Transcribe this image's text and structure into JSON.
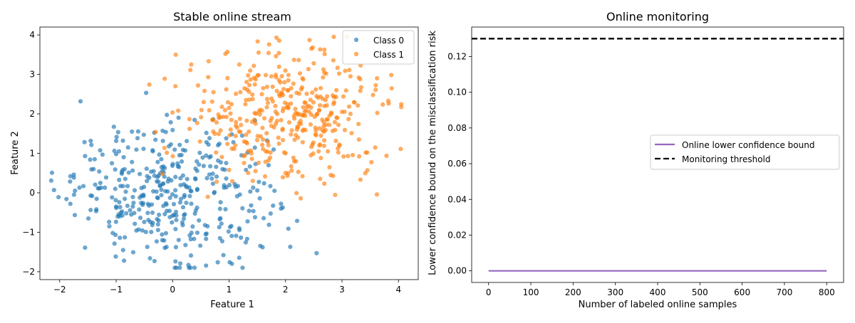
{
  "chart_data": [
    {
      "type": "scatter",
      "title": "Stable online stream",
      "xlabel": "Feature 1",
      "ylabel": "Feature 2",
      "xlim": [
        -2.35,
        4.35
      ],
      "ylim": [
        -2.2,
        4.2
      ],
      "xticks": [
        -2,
        -1,
        0,
        1,
        2,
        3,
        4
      ],
      "yticks": [
        -2,
        -1,
        0,
        1,
        2,
        3,
        4
      ],
      "grid": false,
      "legend_position": "top-right",
      "series": [
        {
          "name": "Class 0",
          "color": "#1f77b4",
          "distribution": {
            "n": 400,
            "mean": [
              0,
              0
            ],
            "sd": [
              0.85,
              0.85
            ]
          },
          "points": [
            [
              -2.1,
              0.07
            ],
            [
              -2.02,
              -0.11
            ],
            [
              -1.88,
              -0.16
            ],
            [
              -1.81,
              0.42
            ],
            [
              -1.75,
              0.46
            ],
            [
              -1.65,
              0.13
            ],
            [
              -1.58,
              0.17
            ],
            [
              -1.55,
              0.93
            ],
            [
              -1.55,
              -1.39
            ],
            [
              -1.46,
              0.84
            ],
            [
              -1.38,
              0.85
            ],
            [
              -1.35,
              -0.42
            ],
            [
              -1.3,
              0.54
            ],
            [
              -1.2,
              0.13
            ],
            [
              -1.12,
              -0.85
            ],
            [
              -1.0,
              0.98
            ],
            [
              -0.95,
              1.05
            ],
            [
              -0.88,
              1.32
            ],
            [
              -0.86,
              -1.72
            ],
            [
              -0.72,
              1.55
            ],
            [
              -0.8,
              -0.33
            ],
            [
              -0.51,
              1.47
            ],
            [
              -0.12,
              1.54
            ],
            [
              0.0,
              1.59
            ],
            [
              0.25,
              1.31
            ],
            [
              0.28,
              -1.83
            ],
            [
              0.38,
              -1.17
            ],
            [
              0.72,
              1.86
            ],
            [
              0.9,
              -1.58
            ],
            [
              1.05,
              -1.8
            ],
            [
              1.3,
              0.58
            ],
            [
              1.39,
              -0.32
            ],
            [
              1.5,
              0.06
            ],
            [
              1.62,
              0.24
            ],
            [
              1.92,
              -0.28
            ],
            [
              1.92,
              -0.4
            ],
            [
              2.05,
              -0.91
            ],
            [
              1.32,
              -1.17
            ],
            [
              1.18,
              -0.9
            ],
            [
              -0.4,
              -1.66
            ],
            [
              -0.32,
              -1.73
            ],
            [
              -0.6,
              -0.93
            ],
            [
              0.55,
              0.68
            ],
            [
              0.12,
              0.95
            ],
            [
              -0.25,
              0.28
            ],
            [
              0.41,
              -0.45
            ],
            [
              -1.0,
              -0.35
            ],
            [
              0.85,
              -0.24
            ],
            [
              1.1,
              0.22
            ],
            [
              -0.72,
              0.78
            ],
            [
              0.6,
              1.28
            ],
            [
              -1.28,
              0.25
            ],
            [
              1.22,
              0.95
            ],
            [
              -0.15,
              -1.21
            ],
            [
              0.32,
              0.05
            ],
            [
              -0.46,
              0.61
            ],
            [
              1.46,
              -0.62
            ],
            [
              0.0,
              -0.58
            ],
            [
              -0.9,
              0.52
            ],
            [
              0.78,
              0.41
            ],
            [
              -0.58,
              -0.12
            ],
            [
              0.18,
              -0.82
            ],
            [
              -1.06,
              -1.02
            ],
            [
              0.95,
              1.38
            ],
            [
              -0.35,
              1.05
            ],
            [
              0.49,
              -1.34
            ],
            [
              -0.2,
              0.85
            ],
            [
              1.7,
              0.7
            ],
            [
              -1.4,
              0.6
            ],
            [
              0.05,
              0.4
            ]
          ]
        },
        {
          "name": "Class 1",
          "color": "#ff7f0e",
          "distribution": {
            "n": 400,
            "mean": [
              2,
              2
            ],
            "sd": [
              0.85,
              0.85
            ]
          },
          "points": [
            [
              -0.14,
              2.89
            ],
            [
              0.33,
              3.25
            ],
            [
              0.63,
              2.93
            ],
            [
              0.97,
              3.57
            ],
            [
              1.18,
              3.25
            ],
            [
              1.84,
              3.93
            ],
            [
              2.15,
              3.37
            ],
            [
              2.48,
              3.68
            ],
            [
              2.5,
              3.28
            ],
            [
              2.72,
              3.02
            ],
            [
              2.95,
              3.02
            ],
            [
              3.15,
              2.95
            ],
            [
              3.32,
              2.88
            ],
            [
              3.62,
              2.9
            ],
            [
              3.82,
              2.33
            ],
            [
              4.04,
              1.11
            ],
            [
              3.45,
              0.57
            ],
            [
              3.42,
              1.02
            ],
            [
              2.8,
              0.45
            ],
            [
              2.3,
              0.42
            ],
            [
              2.0,
              0.5
            ],
            [
              1.0,
              0.58
            ],
            [
              1.42,
              0.3
            ],
            [
              -0.18,
              0.48
            ],
            [
              -0.3,
              1.54
            ],
            [
              0.1,
              2.08
            ],
            [
              0.45,
              2.72
            ],
            [
              1.52,
              2.98
            ],
            [
              3.05,
              1.59
            ],
            [
              2.38,
              2.18
            ],
            [
              1.85,
              1.82
            ],
            [
              2.6,
              1.2
            ],
            [
              1.35,
              1.55
            ],
            [
              2.1,
              2.65
            ],
            [
              1.0,
              2.15
            ],
            [
              2.85,
              2.25
            ],
            [
              1.65,
              1.05
            ],
            [
              2.45,
              0.95
            ],
            [
              3.15,
              2.0
            ],
            [
              0.72,
              1.55
            ],
            [
              1.9,
              2.45
            ],
            [
              2.22,
              1.4
            ],
            [
              1.2,
              2.55
            ],
            [
              2.65,
              1.85
            ],
            [
              0.55,
              2.3
            ],
            [
              3.3,
              1.35
            ],
            [
              1.55,
              2.1
            ],
            [
              2.0,
              1.0
            ],
            [
              1.05,
              1.12
            ],
            [
              2.9,
              2.6
            ],
            [
              1.75,
              2.95
            ],
            [
              2.3,
              2.9
            ],
            [
              0.82,
              1.9
            ],
            [
              2.55,
              2.45
            ],
            [
              1.45,
              1.85
            ],
            [
              3.55,
              2.48
            ],
            [
              0.3,
              1.62
            ],
            [
              1.95,
              1.62
            ],
            [
              2.75,
              1.05
            ],
            [
              1.3,
              2.35
            ],
            [
              2.15,
              1.95
            ],
            [
              1.6,
              1.35
            ],
            [
              2.42,
              2.05
            ],
            [
              0.95,
              2.62
            ],
            [
              3.0,
              2.05
            ],
            [
              1.82,
              2.2
            ],
            [
              2.05,
              2.85
            ],
            [
              1.12,
              1.7
            ],
            [
              2.68,
              1.55
            ],
            [
              0.05,
              2.7
            ],
            [
              1.7,
              0.82
            ],
            [
              2.32,
              1.6
            ]
          ]
        }
      ]
    },
    {
      "type": "line",
      "title": "Online monitoring",
      "xlabel": "Number of labeled online samples",
      "ylabel": "Lower confidence bound on the misclassification risk",
      "xlim": [
        -40,
        840
      ],
      "ylim": [
        -0.0065,
        0.1365
      ],
      "xticks": [
        0,
        100,
        200,
        300,
        400,
        500,
        600,
        700,
        800
      ],
      "yticks": [
        0.0,
        0.02,
        0.04,
        0.06,
        0.08,
        0.1,
        0.12
      ],
      "ytick_labels": [
        "0.00",
        "0.02",
        "0.04",
        "0.06",
        "0.08",
        "0.10",
        "0.12"
      ],
      "grid": false,
      "legend_position": "center-right",
      "series": [
        {
          "name": "Online lower confidence bound",
          "color": "#9467bd",
          "style": "solid",
          "x": [
            0,
            800
          ],
          "y": [
            0.0,
            0.0
          ]
        },
        {
          "name": "Monitoring threshold",
          "color": "#000000",
          "style": "dashed",
          "x": [
            -40,
            840
          ],
          "y": [
            0.13,
            0.13
          ]
        }
      ]
    }
  ]
}
